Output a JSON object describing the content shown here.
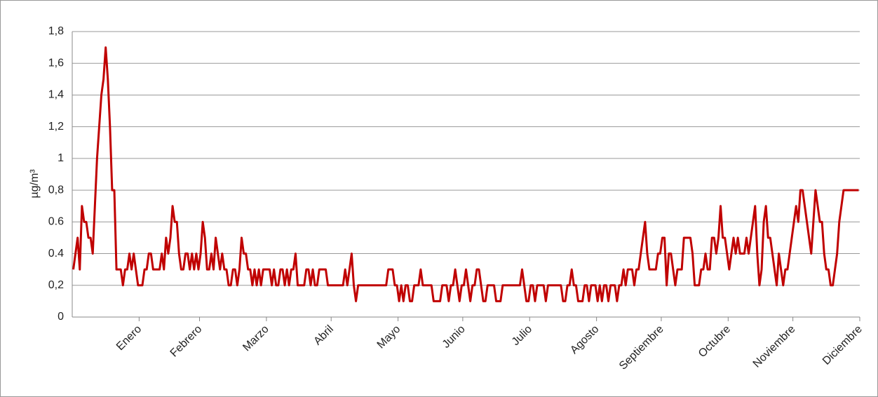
{
  "chart_data": {
    "type": "line",
    "ylabel": "µg/m³",
    "color": "#c00000",
    "grid": true,
    "xlim": [
      0,
      365
    ],
    "xticks": [
      {
        "value": 31,
        "label": "Enero"
      },
      {
        "value": 59,
        "label": "Febrero"
      },
      {
        "value": 90,
        "label": "Marzo"
      },
      {
        "value": 120,
        "label": "Abril"
      },
      {
        "value": 151,
        "label": "Mayo"
      },
      {
        "value": 181,
        "label": "Junio"
      },
      {
        "value": 212,
        "label": "Julio"
      },
      {
        "value": 243,
        "label": "Agosto"
      },
      {
        "value": 273,
        "label": "Septiembre"
      },
      {
        "value": 304,
        "label": "Octubre"
      },
      {
        "value": 334,
        "label": "Noviembre"
      },
      {
        "value": 365,
        "label": "Diciembre"
      }
    ],
    "ylim": [
      0,
      1.8
    ],
    "yticks": [
      0,
      {
        "value": 0.2,
        "label": "0,2"
      },
      {
        "value": 0.4,
        "label": "0.4"
      },
      {
        "value": 0.6,
        "label": "0.6"
      },
      {
        "value": 0.8,
        "label": "0,8"
      },
      1,
      {
        "value": 1.2,
        "label": "1,2"
      },
      {
        "value": 1.4,
        "label": "1,4"
      },
      {
        "value": 1.6,
        "label": "1,6"
      },
      {
        "value": 1.8,
        "label": "1,8"
      }
    ],
    "values": [
      0.3,
      0.4,
      0.5,
      0.3,
      0.7,
      0.6,
      0.6,
      0.5,
      0.5,
      0.4,
      0.7,
      1.0,
      1.2,
      1.4,
      1.5,
      1.7,
      1.5,
      1.2,
      0.8,
      0.8,
      0.3,
      0.3,
      0.3,
      0.2,
      0.3,
      0.3,
      0.4,
      0.3,
      0.4,
      0.3,
      0.2,
      0.2,
      0.2,
      0.3,
      0.3,
      0.4,
      0.4,
      0.3,
      0.3,
      0.3,
      0.3,
      0.4,
      0.3,
      0.5,
      0.4,
      0.5,
      0.7,
      0.6,
      0.6,
      0.4,
      0.3,
      0.3,
      0.4,
      0.4,
      0.3,
      0.4,
      0.3,
      0.4,
      0.3,
      0.4,
      0.6,
      0.5,
      0.3,
      0.3,
      0.4,
      0.3,
      0.5,
      0.4,
      0.3,
      0.4,
      0.3,
      0.3,
      0.2,
      0.2,
      0.3,
      0.3,
      0.2,
      0.3,
      0.5,
      0.4,
      0.4,
      0.3,
      0.3,
      0.2,
      0.3,
      0.2,
      0.3,
      0.2,
      0.3,
      0.3,
      0.3,
      0.3,
      0.2,
      0.3,
      0.2,
      0.2,
      0.3,
      0.3,
      0.2,
      0.3,
      0.2,
      0.3,
      0.3,
      0.4,
      0.2,
      0.2,
      0.2,
      0.2,
      0.3,
      0.3,
      0.2,
      0.3,
      0.2,
      0.2,
      0.3,
      0.3,
      0.3,
      0.3,
      0.2,
      0.2,
      0.2,
      0.2,
      0.2,
      0.2,
      0.2,
      0.2,
      0.3,
      0.2,
      0.3,
      0.4,
      0.2,
      0.1,
      0.2,
      0.2,
      0.2,
      0.2,
      0.2,
      0.2,
      0.2,
      0.2,
      0.2,
      0.2,
      0.2,
      0.2,
      0.2,
      0.2,
      0.3,
      0.3,
      0.3,
      0.2,
      0.2,
      0.1,
      0.2,
      0.1,
      0.2,
      0.2,
      0.1,
      0.1,
      0.2,
      0.2,
      0.2,
      0.3,
      0.2,
      0.2,
      0.2,
      0.2,
      0.2,
      0.1,
      0.1,
      0.1,
      0.1,
      0.2,
      0.2,
      0.2,
      0.1,
      0.2,
      0.2,
      0.3,
      0.2,
      0.1,
      0.2,
      0.2,
      0.3,
      0.2,
      0.1,
      0.2,
      0.2,
      0.3,
      0.3,
      0.2,
      0.1,
      0.1,
      0.2,
      0.2,
      0.2,
      0.2,
      0.1,
      0.1,
      0.1,
      0.2,
      0.2,
      0.2,
      0.2,
      0.2,
      0.2,
      0.2,
      0.2,
      0.2,
      0.3,
      0.2,
      0.1,
      0.1,
      0.2,
      0.2,
      0.1,
      0.2,
      0.2,
      0.2,
      0.2,
      0.1,
      0.2,
      0.2,
      0.2,
      0.2,
      0.2,
      0.2,
      0.2,
      0.1,
      0.1,
      0.2,
      0.2,
      0.3,
      0.2,
      0.2,
      0.1,
      0.1,
      0.1,
      0.2,
      0.2,
      0.1,
      0.2,
      0.2,
      0.2,
      0.1,
      0.2,
      0.1,
      0.2,
      0.2,
      0.1,
      0.2,
      0.2,
      0.2,
      0.1,
      0.2,
      0.2,
      0.3,
      0.2,
      0.3,
      0.3,
      0.3,
      0.2,
      0.3,
      0.3,
      0.4,
      0.5,
      0.6,
      0.4,
      0.3,
      0.3,
      0.3,
      0.3,
      0.4,
      0.4,
      0.5,
      0.5,
      0.2,
      0.4,
      0.4,
      0.3,
      0.2,
      0.3,
      0.3,
      0.3,
      0.5,
      0.5,
      0.5,
      0.5,
      0.4,
      0.2,
      0.2,
      0.2,
      0.3,
      0.3,
      0.4,
      0.3,
      0.3,
      0.5,
      0.5,
      0.4,
      0.5,
      0.7,
      0.5,
      0.5,
      0.4,
      0.3,
      0.4,
      0.5,
      0.4,
      0.5,
      0.4,
      0.4,
      0.4,
      0.5,
      0.4,
      0.5,
      0.6,
      0.7,
      0.4,
      0.2,
      0.3,
      0.6,
      0.7,
      0.5,
      0.5,
      0.4,
      0.3,
      0.2,
      0.4,
      0.3,
      0.2,
      0.3,
      0.3,
      0.4,
      0.5,
      0.6,
      0.7,
      0.6,
      0.8,
      0.8,
      0.7,
      0.6,
      0.5,
      0.4,
      0.6,
      0.8,
      0.7,
      0.6,
      0.6,
      0.4,
      0.3,
      0.3,
      0.2,
      0.2,
      0.3,
      0.4,
      0.6,
      0.7,
      0.8,
      0.8,
      0.8,
      0.8,
      0.8,
      0.8,
      0.8,
      0.8
    ]
  }
}
